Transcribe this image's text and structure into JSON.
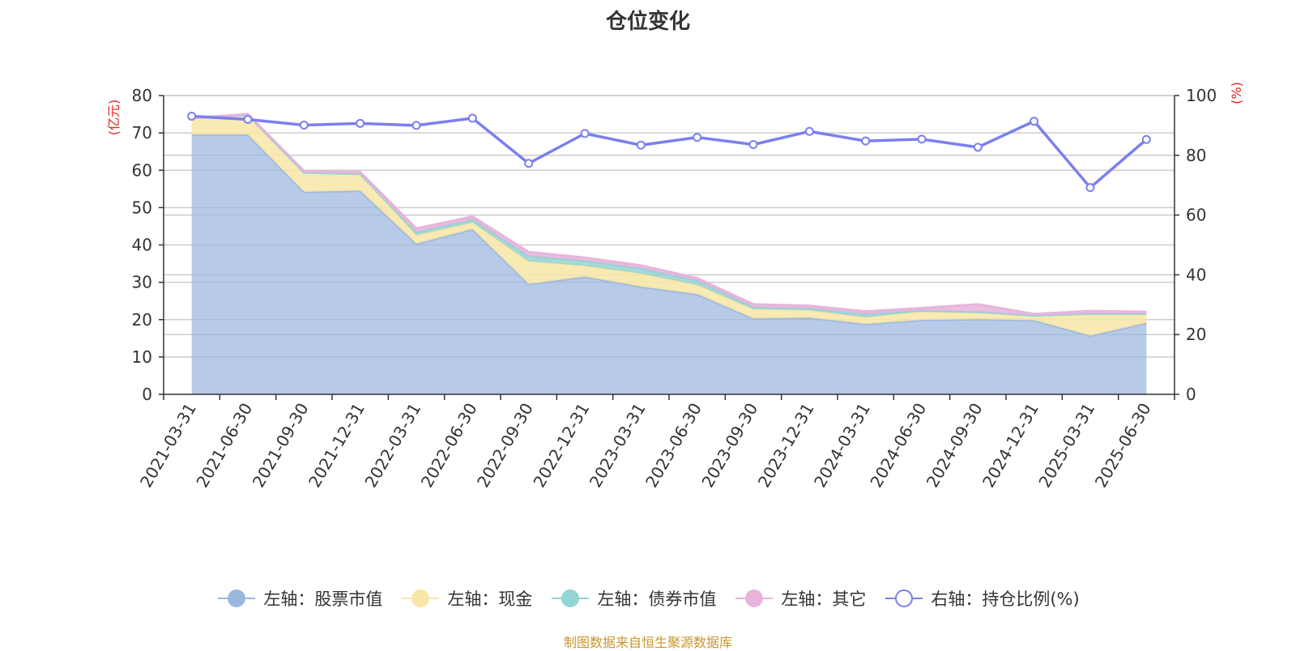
{
  "chart_data": {
    "type": "area",
    "title": "仓位变化",
    "y_left_label": "(亿元)",
    "y_right_label": "(%)",
    "y_left_lim": [
      0,
      80
    ],
    "y_left_ticks": [
      "0",
      "10",
      "20",
      "30",
      "40",
      "50",
      "60",
      "70",
      "80"
    ],
    "y_right_lim": [
      0,
      100
    ],
    "y_right_ticks": [
      "0",
      "20",
      "40",
      "60",
      "80",
      "100"
    ],
    "grid": true,
    "legend_position": "bottom",
    "categories": [
      "2021-03-31",
      "2021-06-30",
      "2021-09-30",
      "2021-12-31",
      "2022-03-31",
      "2022-06-30",
      "2022-09-30",
      "2022-12-31",
      "2023-03-31",
      "2023-06-30",
      "2023-09-30",
      "2023-12-31",
      "2024-03-31",
      "2024-06-30",
      "2024-09-30",
      "2024-12-31",
      "2025-03-31",
      "2025-06-30"
    ],
    "stacked_series": [
      {
        "name": "左轴：股票市值",
        "color": "#9bb7e0",
        "values": [
          69.5,
          69.5,
          54.2,
          54.5,
          40.3,
          44.2,
          29.5,
          31.5,
          28.8,
          26.8,
          20.3,
          20.5,
          18.8,
          19.9,
          20.1,
          19.8,
          15.7,
          19.1
        ]
      },
      {
        "name": "左轴：现金",
        "color": "#f8e6a6",
        "values": [
          4.5,
          5.3,
          5.2,
          4.5,
          2.3,
          1.8,
          6.1,
          2.9,
          3.5,
          2.5,
          2.5,
          2.0,
          1.8,
          2.3,
          1.8,
          1.2,
          5.8,
          2.4
        ]
      },
      {
        "name": "左轴：债券市值",
        "color": "#93d4d4",
        "values": [
          0,
          0,
          0,
          0,
          0.8,
          0.8,
          1.4,
          1.4,
          1.4,
          1.2,
          0.5,
          0.5,
          0.9,
          0.2,
          0.2,
          0.1,
          0.1,
          0.1
        ]
      },
      {
        "name": "左轴：其它",
        "color": "#e8b4dc",
        "values": [
          0,
          0.2,
          0.4,
          0.5,
          1.0,
          0.8,
          1.1,
          0.8,
          0.8,
          0.6,
          0.8,
          0.7,
          0.7,
          0.7,
          2.0,
          0.4,
          0.7,
          0.5
        ]
      }
    ],
    "line_series": {
      "name": "右轴：持仓比例(%)",
      "color": "#7b7ff0",
      "values": [
        93.1,
        92.0,
        90.1,
        90.7,
        90.0,
        92.4,
        77.3,
        87.3,
        83.4,
        86.0,
        83.6,
        88.0,
        84.8,
        85.4,
        82.7,
        91.4,
        69.2,
        85.3
      ]
    }
  },
  "legend": [
    {
      "label": "左轴：股票市值",
      "icon": "filled-circle",
      "color": "#9bb7e0"
    },
    {
      "label": "左轴：现金",
      "icon": "filled-circle",
      "color": "#f8e6a6"
    },
    {
      "label": "左轴：债券市值",
      "icon": "filled-circle",
      "color": "#93d4d4"
    },
    {
      "label": "左轴：其它",
      "icon": "filled-circle",
      "color": "#e8b4dc"
    },
    {
      "label": "右轴：持仓比例(%)",
      "icon": "hollow-circle",
      "color": "#7b7ff0"
    }
  ],
  "source_text": "制图数据来自恒生聚源数据库"
}
